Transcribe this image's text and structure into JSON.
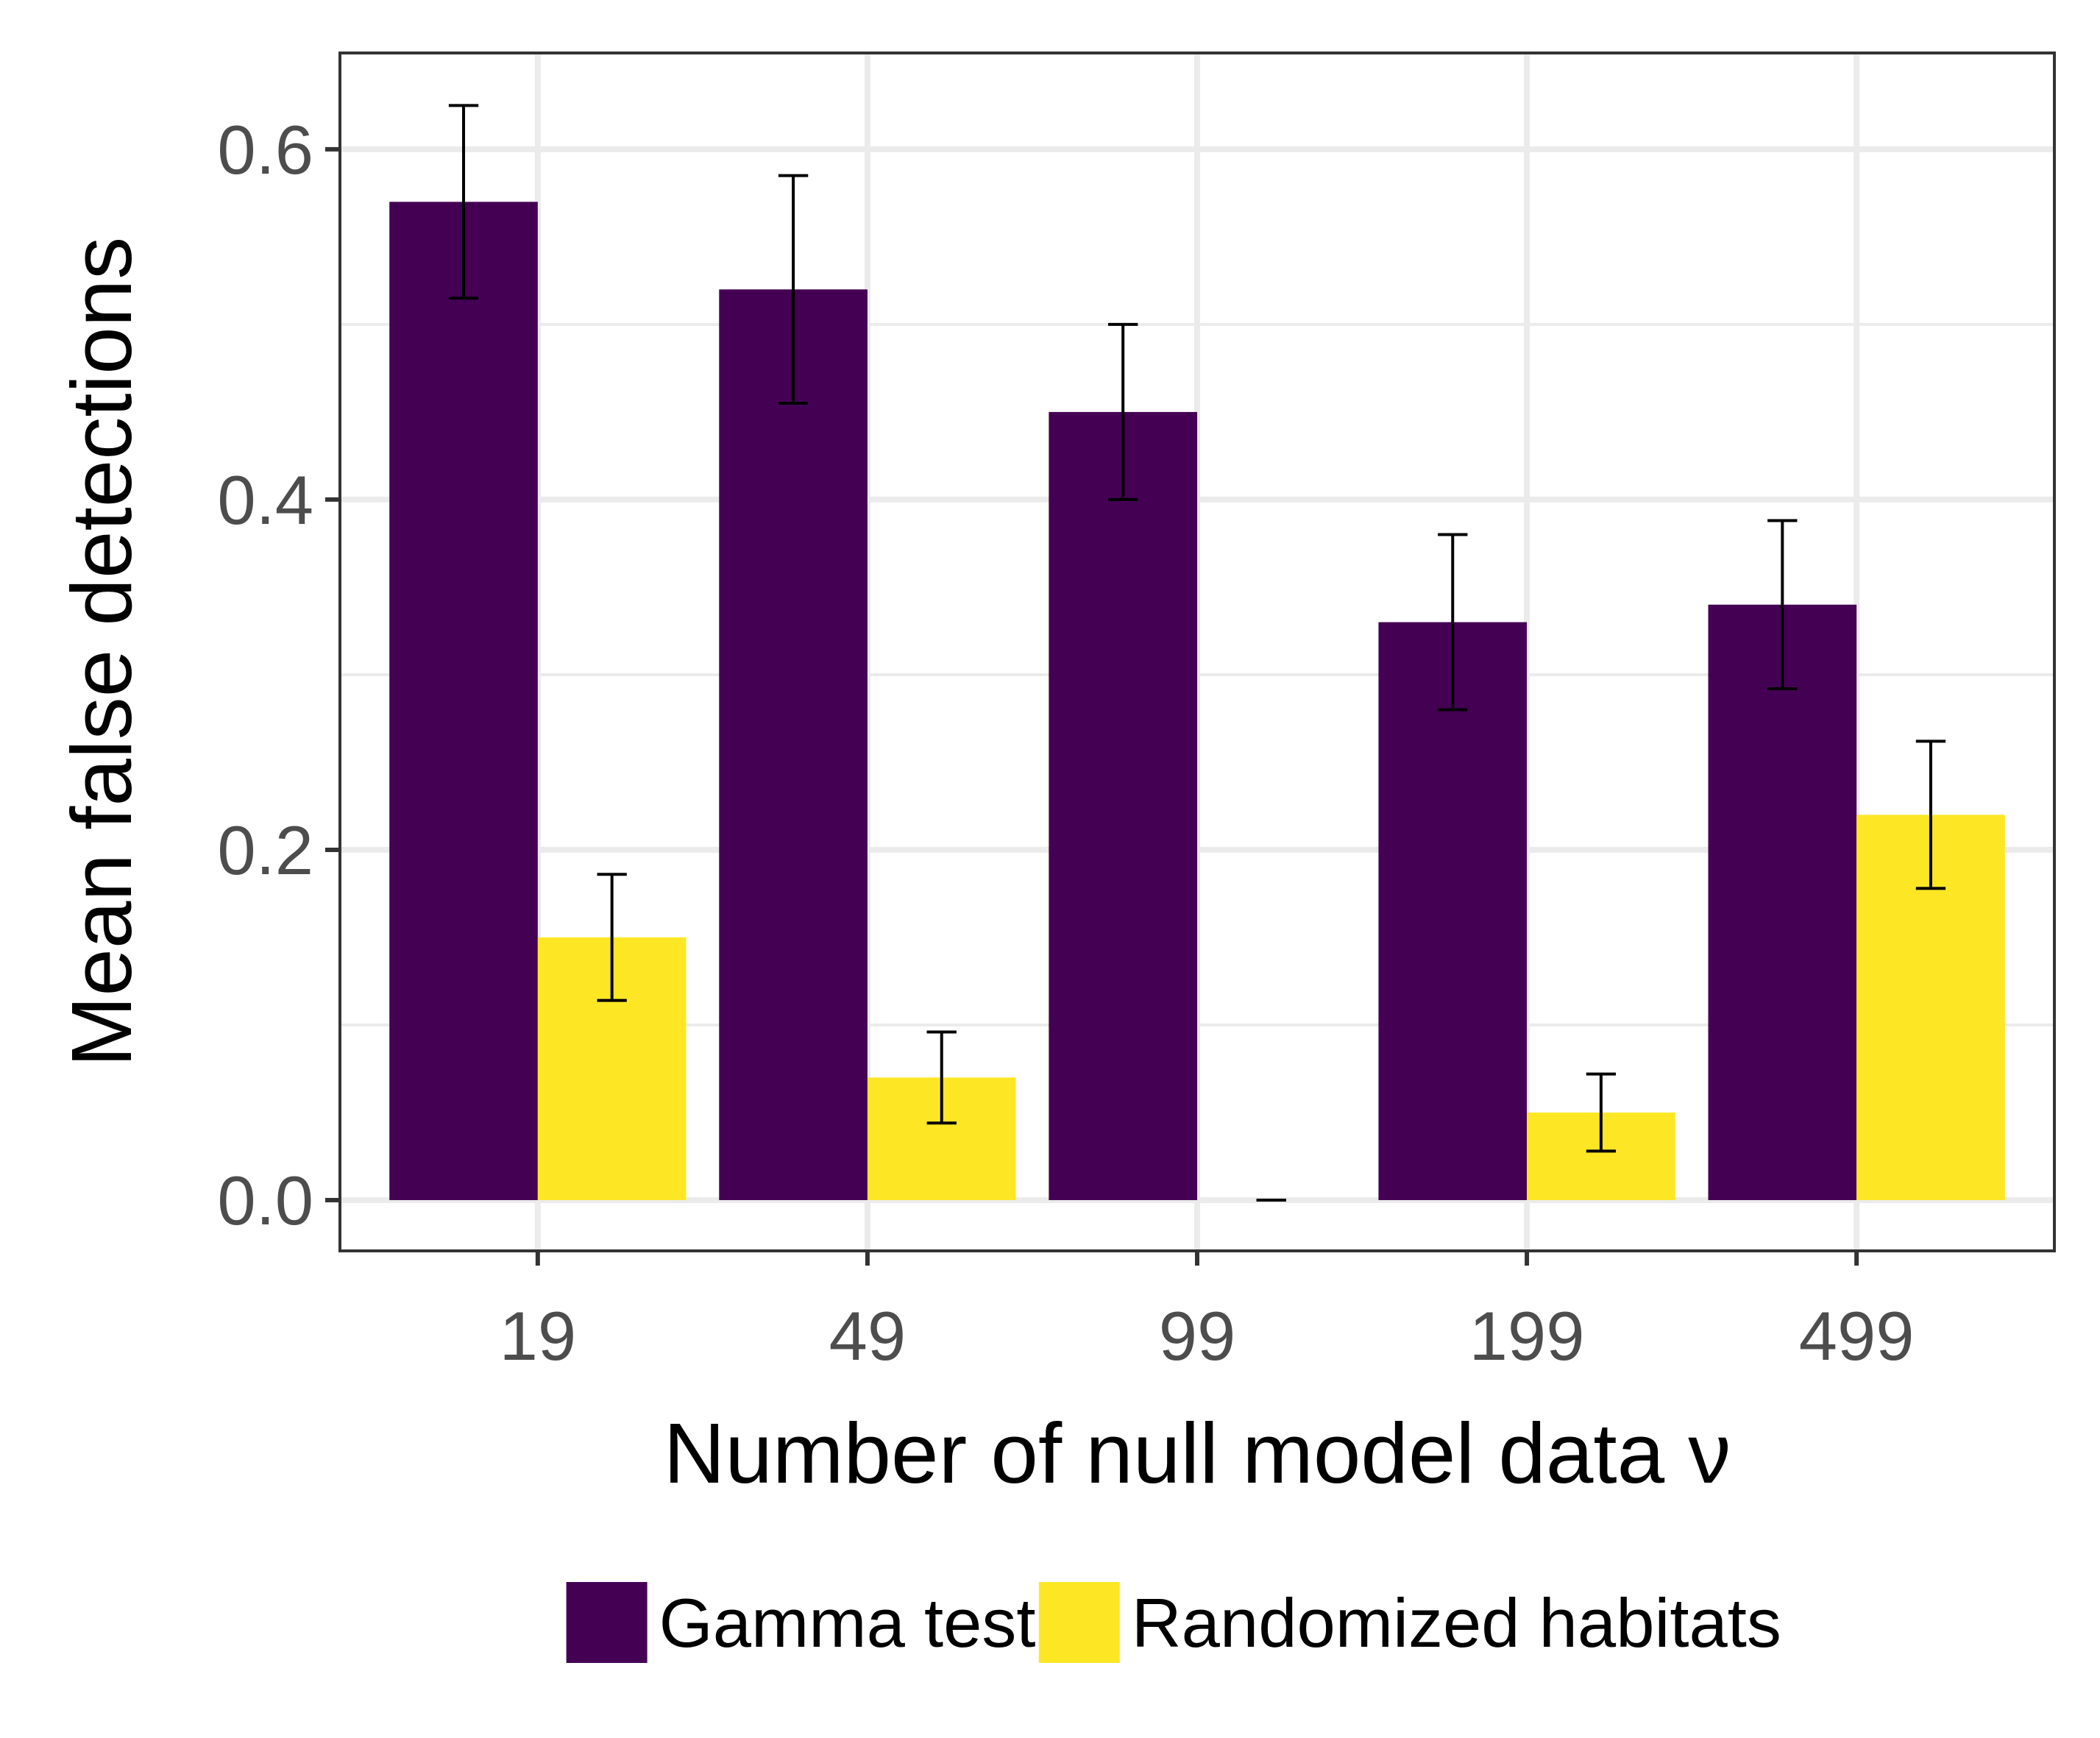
{
  "chart_data": {
    "type": "bar",
    "xlabel": "Number of null model data ν",
    "ylabel": "Mean false detections",
    "categories": [
      "19",
      "49",
      "99",
      "199",
      "499"
    ],
    "ylim": [
      -0.029,
      0.655
    ],
    "yticks": [
      0.0,
      0.2,
      0.4,
      0.6
    ],
    "ytick_labels": [
      "0.0",
      "0.2",
      "0.4",
      "0.6"
    ],
    "grid": true,
    "legend_position": "bottom",
    "series": [
      {
        "name": "Gamma test",
        "color": "#440154",
        "values": [
          0.57,
          0.52,
          0.45,
          0.33,
          0.34
        ],
        "error_low": [
          0.515,
          0.455,
          0.4,
          0.28,
          0.292
        ],
        "error_high": [
          0.625,
          0.585,
          0.5,
          0.38,
          0.388
        ]
      },
      {
        "name": "Randomized habitats",
        "color": "#FDE725",
        "values": [
          0.15,
          0.07,
          0.0,
          0.05,
          0.22
        ],
        "error_low": [
          0.114,
          0.044,
          0.0,
          0.028,
          0.178
        ],
        "error_high": [
          0.186,
          0.096,
          0.0,
          0.072,
          0.262
        ]
      }
    ]
  }
}
